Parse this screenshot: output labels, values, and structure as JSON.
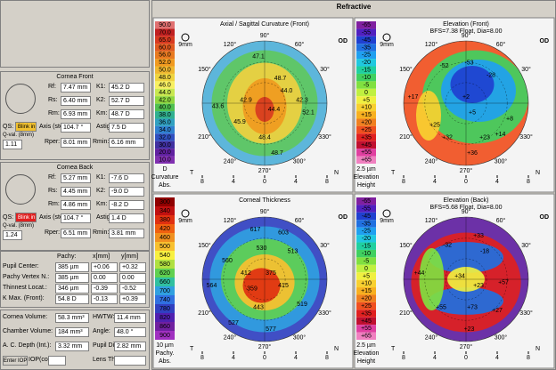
{
  "left": {
    "front": {
      "title": "Cornea Front",
      "rows": [
        [
          "Rf:",
          "7.47 mm",
          "K1:",
          "45.2 D"
        ],
        [
          "Rs:",
          "6.40 mm",
          "K2:",
          "52.7 D"
        ],
        [
          "Rm:",
          "6.93 mm",
          "Km:",
          "48.7 D"
        ],
        [
          "Axis (steep):",
          "104.7 °",
          "Astig:",
          "7.5 D"
        ]
      ],
      "qs": "QS:",
      "qs_value": "Blink in",
      "qval_label": "Q-val. (8mm)",
      "qval_value": "1.11",
      "tail": [
        "Rper:",
        "8.01 mm",
        "Rmin:",
        "6.16 mm"
      ]
    },
    "back": {
      "title": "Cornea Back",
      "rows": [
        [
          "Rf:",
          "5.27 mm",
          "K1:",
          "-7.6 D"
        ],
        [
          "Rs:",
          "4.45 mm",
          "K2:",
          "-9.0 D"
        ],
        [
          "Rm:",
          "4.86 mm",
          "Km:",
          "-8.2 D"
        ],
        [
          "Axis (steep):",
          "104.7 °",
          "Astig:",
          "1.4 D"
        ]
      ],
      "qs": "QS:",
      "qs_value": "Blink in",
      "qval_label": "Q-val. (8mm)",
      "qval_value": "1.24",
      "tail": [
        "Rper:",
        "6.51 mm",
        "Rmin:",
        "3.81 mm"
      ]
    },
    "pachy": {
      "header": [
        "Pachy:",
        "x[mm]",
        "y[mm]"
      ],
      "rows": [
        [
          "Pupil Center:",
          "385 µm",
          "+0.06",
          "+0.32"
        ],
        [
          "Pachy Vertex N.:",
          "385 µm",
          "0.00",
          "0.00"
        ],
        [
          "Thinnest Locat.:",
          "346 µm",
          "-0.39",
          "-0.52"
        ],
        [
          "K Max. (Front):",
          "54.8 D",
          "-0.13",
          "+0.39"
        ]
      ]
    },
    "volumes": {
      "rows": [
        [
          "Cornea Volume:",
          "58.3 mm³",
          "HWTW:",
          "11.4 mm"
        ],
        [
          "Chamber Volume:",
          "184 mm³",
          "Angle:",
          "48.0 °"
        ],
        [
          "A. C. Depth (Int.):",
          "3.32 mm",
          "Pupil Dia:",
          "2.82 mm"
        ],
        [
          "Enter IOP",
          "IOP(cor):",
          "Lens Th.:"
        ]
      ]
    }
  },
  "header": {
    "title": "Refractive"
  },
  "common": {
    "eye": "OD",
    "ticks": [
      "8",
      "4",
      "0",
      "4",
      "8"
    ],
    "left": "T",
    "right": "N",
    "angles": [
      "90°",
      "60°",
      "30°",
      "330°",
      "300°",
      "270°",
      "240°",
      "210°",
      "150°",
      "120°"
    ],
    "zoom": "9mm"
  },
  "maps": [
    {
      "title": "Axial / Sagittal Curvature (Front)",
      "scale": [
        "90.0",
        "70.0",
        "65.0",
        "60.0",
        "56.0",
        "52.0",
        "50.0",
        "48.0",
        "46.0",
        "44.0",
        "42.0",
        "40.0",
        "38.0",
        "36.0",
        "34.0",
        "32.0",
        "30.0",
        "20.0",
        "10.0"
      ],
      "colors": [
        "#e07070",
        "#c02020",
        "#d83a20",
        "#e05a20",
        "#e87a20",
        "#f09a20",
        "#f0b830",
        "#f0d440",
        "#f8f060",
        "#c8e850",
        "#90d840",
        "#50c050",
        "#30b090",
        "#30a0c0",
        "#3080d0",
        "#3050c0",
        "#4030a0",
        "#6020a0",
        "#8030b0"
      ],
      "footer": [
        "D",
        "Curvature",
        "Abs."
      ],
      "labels": [
        "47.1",
        "42.9",
        "44.0",
        "42.3",
        "43.6",
        "48.7",
        "44.4",
        "52.1",
        "45.9",
        "48.4",
        "48.7"
      ]
    },
    {
      "title": "Elevation (Front)",
      "subtitle": "BFS=7.38 Float, Dia=8.00",
      "scale": [
        "-65",
        "-55",
        "-45",
        "-35",
        "-25",
        "-20",
        "-15",
        "-10",
        "-5",
        "0",
        "+5",
        "+10",
        "+15",
        "+20",
        "+25",
        "+35",
        "+45",
        "+55",
        "+65"
      ],
      "colors": [
        "#8020a0",
        "#5020c0",
        "#2040d0",
        "#2070e0",
        "#20a0f0",
        "#20c8e0",
        "#20d0a0",
        "#40d060",
        "#80e040",
        "#c0f040",
        "#f0f040",
        "#f8d030",
        "#f8b020",
        "#f08020",
        "#f05020",
        "#e02020",
        "#c01030",
        "#e040a0",
        "#f080c0"
      ],
      "footer": [
        "2.5 µm",
        "Elevation",
        "Height"
      ],
      "labels": [
        "-53",
        "-52",
        "-28",
        "+17",
        "+2",
        "+5",
        "+8",
        "+25",
        "+32",
        "+23",
        "+14",
        "+36"
      ]
    },
    {
      "title": "Corneal Thickness",
      "scale": [
        "300",
        "340",
        "380",
        "420",
        "460",
        "500",
        "540",
        "580",
        "620",
        "660",
        "700",
        "740",
        "780",
        "820",
        "860",
        "900"
      ],
      "colors": [
        "#900000",
        "#c01010",
        "#e03010",
        "#f06010",
        "#f09020",
        "#f8c030",
        "#f8f040",
        "#b0e040",
        "#60d050",
        "#30c0a0",
        "#30a0e0",
        "#3070e0",
        "#3040c0",
        "#5020b0",
        "#7020a0",
        "#a030c0"
      ],
      "footer": [
        "10 µm",
        "Pachy.",
        "Abs."
      ],
      "labels": [
        "617",
        "603",
        "530",
        "513",
        "560",
        "412",
        "375",
        "359",
        "415",
        "564",
        "443",
        "519",
        "527",
        "577"
      ]
    },
    {
      "title": "Elevation (Back)",
      "subtitle": "BFS=5.68 Float, Dia=8.00",
      "scale": [
        "-65",
        "-55",
        "-45",
        "-35",
        "-25",
        "-20",
        "-15",
        "-10",
        "-5",
        "0",
        "+5",
        "+10",
        "+15",
        "+20",
        "+25",
        "+35",
        "+45",
        "+55",
        "+65"
      ],
      "colors": [
        "#8020a0",
        "#5020c0",
        "#2040d0",
        "#2070e0",
        "#20a0f0",
        "#20c8e0",
        "#20d0a0",
        "#40d060",
        "#80e040",
        "#c0f040",
        "#f0f040",
        "#f8d030",
        "#f8b020",
        "#f08020",
        "#f05020",
        "#e02020",
        "#c01030",
        "#e040a0",
        "#f080c0"
      ],
      "footer": [
        "2.5 µm",
        "Elevation",
        "Height"
      ],
      "labels": [
        "+33",
        "-32",
        "-18",
        "+44",
        "+34",
        "+23",
        "+57",
        "+55",
        "+73",
        "+27",
        "+23"
      ]
    }
  ]
}
